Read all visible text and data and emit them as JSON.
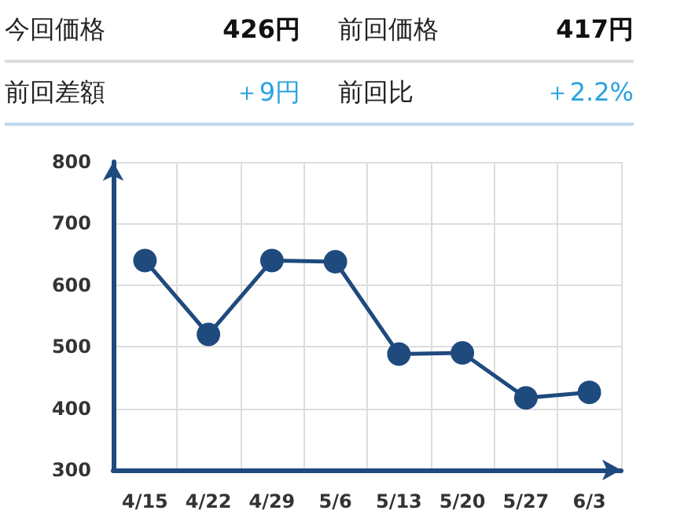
{
  "chart_data": {
    "type": "line",
    "categories": [
      "4/15",
      "4/22",
      "4/29",
      "5/6",
      "5/13",
      "5/20",
      "5/27",
      "6/3"
    ],
    "values": [
      640,
      520,
      640,
      638,
      488,
      490,
      417,
      426
    ],
    "color": "#1e4a7e",
    "ylim": [
      300,
      800
    ],
    "yticks": [
      300,
      400,
      500,
      600,
      700,
      800
    ],
    "grid": true,
    "marker": "circle",
    "line_style": "solid",
    "annotations": [
      "今回価格",
      "426円",
      "前回価格",
      "417円",
      "前回差額",
      "＋9円",
      "前回比",
      "＋2.2%"
    ]
  }
}
